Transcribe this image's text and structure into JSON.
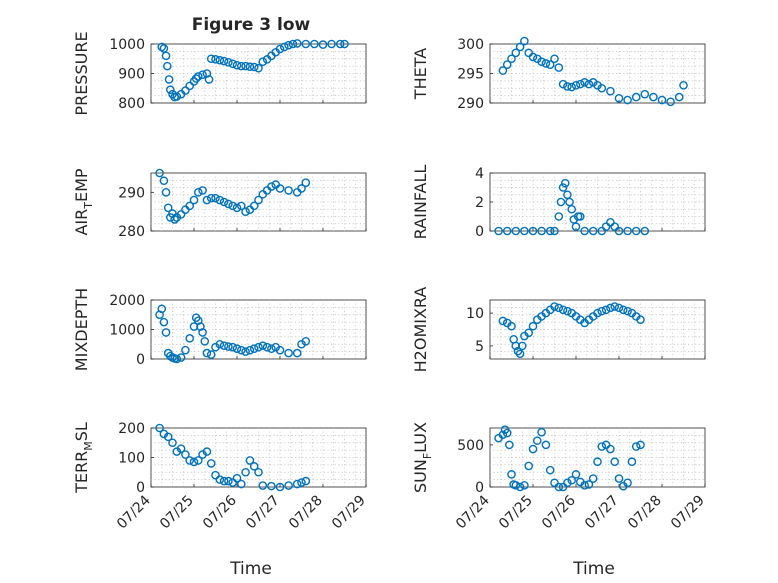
{
  "title": "Figure 3 low",
  "xlabel": "Time",
  "xtick_labels": [
    "07/24",
    "07/25",
    "07/26",
    "07/27",
    "07/28",
    "07/29"
  ],
  "colors": {
    "marker": "#0072bd",
    "axis": "#262626",
    "grid": "#bdbdbd"
  },
  "chart_data": [
    {
      "type": "scatter",
      "ylabel": "PRESSURE",
      "ylabel_sub": "",
      "ylim": [
        800,
        1000
      ],
      "yticks": [
        800,
        900,
        1000
      ],
      "xlim": [
        0,
        5
      ],
      "grid": true,
      "points": [
        [
          0.25,
          990
        ],
        [
          0.3,
          985
        ],
        [
          0.35,
          960
        ],
        [
          0.38,
          925
        ],
        [
          0.42,
          880
        ],
        [
          0.45,
          845
        ],
        [
          0.5,
          830
        ],
        [
          0.55,
          820
        ],
        [
          0.6,
          822
        ],
        [
          0.7,
          830
        ],
        [
          0.8,
          842
        ],
        [
          0.9,
          858
        ],
        [
          1.0,
          873
        ],
        [
          1.05,
          883
        ],
        [
          1.1,
          890
        ],
        [
          1.2,
          896
        ],
        [
          1.3,
          900
        ],
        [
          1.35,
          880
        ],
        [
          1.4,
          950
        ],
        [
          1.5,
          948
        ],
        [
          1.6,
          945
        ],
        [
          1.7,
          942
        ],
        [
          1.8,
          938
        ],
        [
          1.9,
          933
        ],
        [
          2.0,
          928
        ],
        [
          2.1,
          925
        ],
        [
          2.2,
          925
        ],
        [
          2.3,
          923
        ],
        [
          2.4,
          922
        ],
        [
          2.5,
          918
        ],
        [
          2.6,
          940
        ],
        [
          2.7,
          948
        ],
        [
          2.8,
          960
        ],
        [
          2.9,
          972
        ],
        [
          3.0,
          983
        ],
        [
          3.1,
          990
        ],
        [
          3.2,
          996
        ],
        [
          3.3,
          1000
        ],
        [
          3.4,
          1002
        ],
        [
          3.6,
          1000
        ],
        [
          3.8,
          1000
        ],
        [
          4.0,
          998
        ],
        [
          4.2,
          1000
        ],
        [
          4.4,
          1000
        ],
        [
          4.5,
          1000
        ]
      ]
    },
    {
      "type": "scatter",
      "ylabel": "THETA",
      "ylabel_sub": "",
      "ylim": [
        290,
        300
      ],
      "yticks": [
        290,
        295,
        300
      ],
      "xlim": [
        0,
        5
      ],
      "grid": true,
      "points": [
        [
          0.3,
          295.5
        ],
        [
          0.4,
          296.5
        ],
        [
          0.5,
          297.5
        ],
        [
          0.6,
          298.5
        ],
        [
          0.7,
          299.5
        ],
        [
          0.8,
          300.5
        ],
        [
          0.9,
          298.5
        ],
        [
          1.0,
          297.8
        ],
        [
          1.1,
          297.5
        ],
        [
          1.2,
          297
        ],
        [
          1.3,
          296.7
        ],
        [
          1.4,
          296.5
        ],
        [
          1.5,
          297.5
        ],
        [
          1.6,
          296
        ],
        [
          1.7,
          293.2
        ],
        [
          1.8,
          292.8
        ],
        [
          1.9,
          292.7
        ],
        [
          2.0,
          293
        ],
        [
          2.1,
          293.2
        ],
        [
          2.2,
          293.5
        ],
        [
          2.3,
          293.2
        ],
        [
          2.4,
          293.5
        ],
        [
          2.5,
          293
        ],
        [
          2.6,
          292.5
        ],
        [
          2.8,
          292
        ],
        [
          3.0,
          290.8
        ],
        [
          3.2,
          290.5
        ],
        [
          3.4,
          291
        ],
        [
          3.6,
          291.5
        ],
        [
          3.8,
          291
        ],
        [
          4.0,
          290.5
        ],
        [
          4.2,
          290.2
        ],
        [
          4.4,
          291
        ],
        [
          4.5,
          293
        ]
      ]
    },
    {
      "type": "scatter",
      "ylabel": "AIR",
      "ylabel_sub": "TEMP",
      "ylim": [
        280,
        295
      ],
      "yticks": [
        280,
        290
      ],
      "xlim": [
        0,
        5
      ],
      "grid": true,
      "points": [
        [
          0.2,
          295
        ],
        [
          0.3,
          293
        ],
        [
          0.35,
          290
        ],
        [
          0.4,
          286
        ],
        [
          0.45,
          283.5
        ],
        [
          0.5,
          284.5
        ],
        [
          0.55,
          283
        ],
        [
          0.6,
          283.5
        ],
        [
          0.7,
          284.3
        ],
        [
          0.8,
          285.5
        ],
        [
          0.9,
          286.5
        ],
        [
          1.0,
          288
        ],
        [
          1.1,
          290
        ],
        [
          1.2,
          290.5
        ],
        [
          1.3,
          288
        ],
        [
          1.4,
          288.5
        ],
        [
          1.5,
          288.5
        ],
        [
          1.6,
          288
        ],
        [
          1.7,
          287.5
        ],
        [
          1.8,
          287
        ],
        [
          1.9,
          286.5
        ],
        [
          2.0,
          286
        ],
        [
          2.1,
          286.5
        ],
        [
          2.2,
          285
        ],
        [
          2.3,
          285.5
        ],
        [
          2.4,
          286.5
        ],
        [
          2.5,
          288
        ],
        [
          2.6,
          289.5
        ],
        [
          2.7,
          290.5
        ],
        [
          2.8,
          291.5
        ],
        [
          2.9,
          292
        ],
        [
          3.0,
          291
        ],
        [
          3.2,
          290.5
        ],
        [
          3.4,
          290
        ],
        [
          3.5,
          291
        ],
        [
          3.6,
          292.5
        ]
      ]
    },
    {
      "type": "scatter",
      "ylabel": "RAINFALL",
      "ylabel_sub": "",
      "ylim": [
        0,
        4
      ],
      "yticks": [
        0,
        2,
        4
      ],
      "xlim": [
        0,
        5
      ],
      "grid": true,
      "points": [
        [
          0.2,
          0
        ],
        [
          0.4,
          0
        ],
        [
          0.6,
          0
        ],
        [
          0.8,
          0
        ],
        [
          1.0,
          0
        ],
        [
          1.2,
          0
        ],
        [
          1.4,
          0
        ],
        [
          1.5,
          0
        ],
        [
          1.6,
          1
        ],
        [
          1.65,
          2
        ],
        [
          1.7,
          3
        ],
        [
          1.75,
          3.3
        ],
        [
          1.8,
          2.5
        ],
        [
          1.85,
          2
        ],
        [
          1.9,
          1.5
        ],
        [
          1.95,
          0.8
        ],
        [
          2.0,
          0.3
        ],
        [
          2.05,
          1
        ],
        [
          2.1,
          1
        ],
        [
          2.2,
          0
        ],
        [
          2.4,
          0
        ],
        [
          2.6,
          0
        ],
        [
          2.7,
          0.3
        ],
        [
          2.8,
          0.6
        ],
        [
          2.9,
          0.3
        ],
        [
          3.0,
          0
        ],
        [
          3.2,
          0
        ],
        [
          3.4,
          0
        ],
        [
          3.6,
          0
        ]
      ]
    },
    {
      "type": "scatter",
      "ylabel": "MIXDEPTH",
      "ylabel_sub": "",
      "ylim": [
        0,
        2000
      ],
      "yticks": [
        0,
        1000,
        2000
      ],
      "xlim": [
        0,
        5
      ],
      "grid": true,
      "points": [
        [
          0.2,
          1500
        ],
        [
          0.25,
          1700
        ],
        [
          0.3,
          1250
        ],
        [
          0.35,
          900
        ],
        [
          0.4,
          200
        ],
        [
          0.45,
          100
        ],
        [
          0.5,
          50
        ],
        [
          0.55,
          20
        ],
        [
          0.6,
          0
        ],
        [
          0.7,
          50
        ],
        [
          0.8,
          300
        ],
        [
          0.9,
          700
        ],
        [
          1.0,
          1100
        ],
        [
          1.05,
          1400
        ],
        [
          1.1,
          1300
        ],
        [
          1.15,
          1100
        ],
        [
          1.2,
          900
        ],
        [
          1.25,
          600
        ],
        [
          1.3,
          200
        ],
        [
          1.4,
          150
        ],
        [
          1.5,
          400
        ],
        [
          1.6,
          500
        ],
        [
          1.7,
          450
        ],
        [
          1.8,
          420
        ],
        [
          1.9,
          400
        ],
        [
          2.0,
          350
        ],
        [
          2.1,
          300
        ],
        [
          2.2,
          250
        ],
        [
          2.3,
          300
        ],
        [
          2.4,
          350
        ],
        [
          2.5,
          400
        ],
        [
          2.6,
          450
        ],
        [
          2.7,
          400
        ],
        [
          2.8,
          350
        ],
        [
          2.9,
          400
        ],
        [
          3.0,
          300
        ],
        [
          3.2,
          200
        ],
        [
          3.4,
          200
        ],
        [
          3.5,
          500
        ],
        [
          3.6,
          600
        ]
      ]
    },
    {
      "type": "scatter",
      "ylabel": "H2OMIXRA",
      "ylabel_sub": "",
      "ylim": [
        3,
        12
      ],
      "yticks": [
        5,
        10
      ],
      "xlim": [
        0,
        5
      ],
      "grid": true,
      "points": [
        [
          0.3,
          8.8
        ],
        [
          0.4,
          8.5
        ],
        [
          0.5,
          8
        ],
        [
          0.55,
          6
        ],
        [
          0.6,
          5
        ],
        [
          0.65,
          4.2
        ],
        [
          0.7,
          3.8
        ],
        [
          0.75,
          5
        ],
        [
          0.8,
          6.5
        ],
        [
          0.9,
          7
        ],
        [
          1.0,
          8
        ],
        [
          1.1,
          9
        ],
        [
          1.2,
          9.5
        ],
        [
          1.3,
          10
        ],
        [
          1.4,
          10.5
        ],
        [
          1.5,
          11
        ],
        [
          1.6,
          10.8
        ],
        [
          1.7,
          10.5
        ],
        [
          1.8,
          10.3
        ],
        [
          1.9,
          10
        ],
        [
          2.0,
          9.5
        ],
        [
          2.1,
          9
        ],
        [
          2.2,
          8.5
        ],
        [
          2.3,
          9
        ],
        [
          2.4,
          9.5
        ],
        [
          2.5,
          10
        ],
        [
          2.6,
          10.3
        ],
        [
          2.7,
          10.5
        ],
        [
          2.8,
          10.8
        ],
        [
          2.9,
          11
        ],
        [
          3.0,
          10.8
        ],
        [
          3.1,
          10.5
        ],
        [
          3.2,
          10.3
        ],
        [
          3.3,
          10
        ],
        [
          3.4,
          9.5
        ],
        [
          3.5,
          9
        ]
      ]
    },
    {
      "type": "scatter",
      "ylabel": "TERR",
      "ylabel_sub": "MSL",
      "ylim": [
        0,
        200
      ],
      "yticks": [
        0,
        100,
        200
      ],
      "xlim": [
        0,
        5
      ],
      "grid": true,
      "points": [
        [
          0.2,
          200
        ],
        [
          0.3,
          180
        ],
        [
          0.4,
          170
        ],
        [
          0.5,
          150
        ],
        [
          0.6,
          120
        ],
        [
          0.7,
          130
        ],
        [
          0.8,
          110
        ],
        [
          0.9,
          90
        ],
        [
          1.0,
          85
        ],
        [
          1.1,
          90
        ],
        [
          1.2,
          110
        ],
        [
          1.3,
          120
        ],
        [
          1.4,
          80
        ],
        [
          1.5,
          40
        ],
        [
          1.6,
          25
        ],
        [
          1.7,
          20
        ],
        [
          1.8,
          20
        ],
        [
          1.9,
          15
        ],
        [
          2.0,
          30
        ],
        [
          2.1,
          10
        ],
        [
          2.2,
          50
        ],
        [
          2.3,
          90
        ],
        [
          2.4,
          70
        ],
        [
          2.5,
          50
        ],
        [
          2.6,
          5
        ],
        [
          2.8,
          3
        ],
        [
          3.0,
          0
        ],
        [
          3.2,
          5
        ],
        [
          3.4,
          10
        ],
        [
          3.5,
          15
        ],
        [
          3.6,
          20
        ]
      ]
    },
    {
      "type": "scatter",
      "ylabel": "SUN",
      "ylabel_sub": "FLUX",
      "ylim": [
        0,
        700
      ],
      "yticks": [
        0,
        500
      ],
      "xlim": [
        0,
        5
      ],
      "grid": true,
      "points": [
        [
          0.2,
          580
        ],
        [
          0.3,
          620
        ],
        [
          0.35,
          680
        ],
        [
          0.4,
          640
        ],
        [
          0.45,
          500
        ],
        [
          0.5,
          150
        ],
        [
          0.55,
          30
        ],
        [
          0.6,
          20
        ],
        [
          0.7,
          0
        ],
        [
          0.8,
          20
        ],
        [
          0.9,
          250
        ],
        [
          1.0,
          450
        ],
        [
          1.1,
          550
        ],
        [
          1.2,
          650
        ],
        [
          1.3,
          500
        ],
        [
          1.4,
          200
        ],
        [
          1.5,
          50
        ],
        [
          1.6,
          0
        ],
        [
          1.7,
          0
        ],
        [
          1.8,
          50
        ],
        [
          1.9,
          80
        ],
        [
          2.0,
          150
        ],
        [
          2.1,
          60
        ],
        [
          2.2,
          20
        ],
        [
          2.3,
          30
        ],
        [
          2.4,
          100
        ],
        [
          2.5,
          300
        ],
        [
          2.6,
          480
        ],
        [
          2.7,
          500
        ],
        [
          2.8,
          450
        ],
        [
          2.9,
          300
        ],
        [
          3.0,
          100
        ],
        [
          3.1,
          10
        ],
        [
          3.2,
          50
        ],
        [
          3.3,
          300
        ],
        [
          3.4,
          480
        ],
        [
          3.5,
          500
        ]
      ]
    }
  ]
}
